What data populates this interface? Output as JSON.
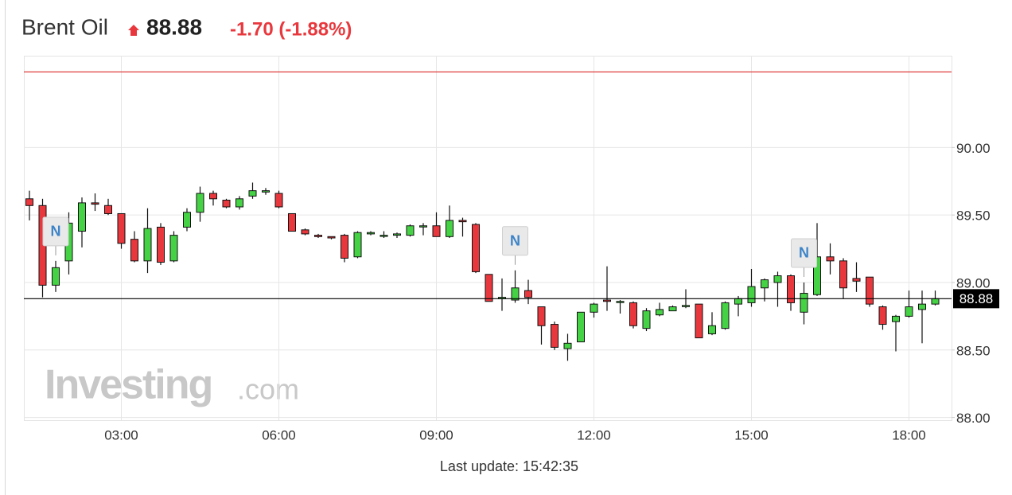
{
  "header": {
    "title": "Brent Oil",
    "change": "-1.70 (-1.88%)",
    "footer": "Last update: 15:42:35",
    "watermark": "Investing",
    "watermark_suffix": ".com"
  },
  "chart_data": {
    "type": "candlestick",
    "last_price": 88.88,
    "reference_line": 90.56,
    "reference_color": "#e03c3c",
    "up_color": "#45d345",
    "down_color": "#e8383d",
    "grid": true,
    "categories": [
      "01:15",
      "01:30",
      "01:45",
      "02:00",
      "02:15",
      "02:30",
      "02:45",
      "03:00",
      "03:15",
      "03:30",
      "03:45",
      "04:00",
      "04:15",
      "04:30",
      "04:45",
      "05:00",
      "05:15",
      "05:30",
      "05:45",
      "06:00",
      "06:15",
      "06:30",
      "06:45",
      "07:00",
      "07:15",
      "07:30",
      "07:45",
      "08:00",
      "08:15",
      "08:30",
      "08:45",
      "09:00",
      "09:15",
      "09:30",
      "09:45",
      "10:00",
      "10:15",
      "10:30",
      "10:45",
      "11:00",
      "11:15",
      "11:30",
      "11:45",
      "12:00",
      "12:15",
      "12:30",
      "12:45",
      "13:00",
      "13:15",
      "13:30",
      "13:45",
      "14:00",
      "14:15",
      "14:30",
      "14:45",
      "15:00",
      "15:15",
      "15:30",
      "15:45",
      "16:00",
      "16:15",
      "16:30",
      "16:45",
      "17:00",
      "17:15",
      "17:30",
      "17:45",
      "18:00",
      "18:15",
      "18:30"
    ],
    "open": [
      89.62,
      89.57,
      88.98,
      89.16,
      89.38,
      89.59,
      89.57,
      89.51,
      89.32,
      89.16,
      89.41,
      89.16,
      89.41,
      89.52,
      89.66,
      89.61,
      89.56,
      89.64,
      89.67,
      89.66,
      89.51,
      89.39,
      89.35,
      89.34,
      89.35,
      89.19,
      89.36,
      89.35,
      89.35,
      89.35,
      89.42,
      89.42,
      89.34,
      89.46,
      89.43,
      89.06,
      88.88,
      88.87,
      88.94,
      88.82,
      88.69,
      88.51,
      88.56,
      88.78,
      88.87,
      88.86,
      88.85,
      88.66,
      88.76,
      88.79,
      88.83,
      88.84,
      88.62,
      88.66,
      88.84,
      88.85,
      88.96,
      89.0,
      89.05,
      88.78,
      88.91,
      89.19,
      89.16,
      89.03,
      89.04,
      88.82,
      88.71,
      88.75,
      88.8,
      88.84
    ],
    "high": [
      89.68,
      89.62,
      89.16,
      89.52,
      89.63,
      89.66,
      89.62,
      89.51,
      89.38,
      89.55,
      89.44,
      89.38,
      89.55,
      89.71,
      89.68,
      89.62,
      89.64,
      89.74,
      89.7,
      89.68,
      89.51,
      89.4,
      89.36,
      89.34,
      89.36,
      89.38,
      89.38,
      89.38,
      89.37,
      89.43,
      89.44,
      89.52,
      89.57,
      89.48,
      89.44,
      89.06,
      89.03,
      89.09,
      89.02,
      88.82,
      88.71,
      88.62,
      88.78,
      88.85,
      89.12,
      88.87,
      88.86,
      88.81,
      88.85,
      88.83,
      88.95,
      88.84,
      88.78,
      88.86,
      88.9,
      89.1,
      89.03,
      89.08,
      89.06,
      89.0,
      89.44,
      89.29,
      89.18,
      89.15,
      89.04,
      88.83,
      88.76,
      88.94,
      88.94,
      88.94
    ],
    "low": [
      89.46,
      88.89,
      88.93,
      89.06,
      89.26,
      89.53,
      89.5,
      89.25,
      89.15,
      89.07,
      89.13,
      89.15,
      89.38,
      89.45,
      89.57,
      89.55,
      89.54,
      89.62,
      89.65,
      89.55,
      89.38,
      89.35,
      89.33,
      89.32,
      89.15,
      89.18,
      89.35,
      89.33,
      89.33,
      89.34,
      89.35,
      89.34,
      89.33,
      89.34,
      89.07,
      88.86,
      88.79,
      88.85,
      88.84,
      88.54,
      88.5,
      88.42,
      88.56,
      88.74,
      88.79,
      88.77,
      88.66,
      88.64,
      88.75,
      88.79,
      88.81,
      88.59,
      88.61,
      88.65,
      88.75,
      88.82,
      88.86,
      88.82,
      88.79,
      88.69,
      88.9,
      89.06,
      88.88,
      88.93,
      88.82,
      88.65,
      88.49,
      88.74,
      88.55,
      88.83
    ],
    "close": [
      89.57,
      88.98,
      89.11,
      89.44,
      89.59,
      89.58,
      89.51,
      89.29,
      89.16,
      89.4,
      89.15,
      89.35,
      89.52,
      89.66,
      89.62,
      89.56,
      89.62,
      89.68,
      89.68,
      89.56,
      89.38,
      89.36,
      89.34,
      89.33,
      89.18,
      89.37,
      89.37,
      89.35,
      89.36,
      89.42,
      89.42,
      89.34,
      89.46,
      89.45,
      89.08,
      88.86,
      88.89,
      88.96,
      88.89,
      88.68,
      88.52,
      88.55,
      88.78,
      88.84,
      88.86,
      88.86,
      88.68,
      88.79,
      88.8,
      88.82,
      88.83,
      88.59,
      88.68,
      88.85,
      88.88,
      88.97,
      89.02,
      89.05,
      88.85,
      88.92,
      89.19,
      89.16,
      88.96,
      89.01,
      88.84,
      88.69,
      88.75,
      88.82,
      88.84,
      88.88
    ],
    "annotations": [
      {
        "label": "N",
        "x": "01:45"
      },
      {
        "label": "N",
        "x": "10:30"
      },
      {
        "label": "N",
        "x": "16:00"
      }
    ],
    "xticks": [
      "03:00",
      "06:00",
      "09:00",
      "12:00",
      "15:00",
      "18:00"
    ],
    "ylim": [
      87.98,
      90.68
    ],
    "yticks": [
      {
        "value": 88,
        "label": "88.00"
      },
      {
        "value": 88.5,
        "label": "88.50"
      },
      {
        "value": 89,
        "label": "89.00"
      },
      {
        "value": 89.5,
        "label": "89.50"
      },
      {
        "value": 90,
        "label": "90.00"
      }
    ]
  }
}
